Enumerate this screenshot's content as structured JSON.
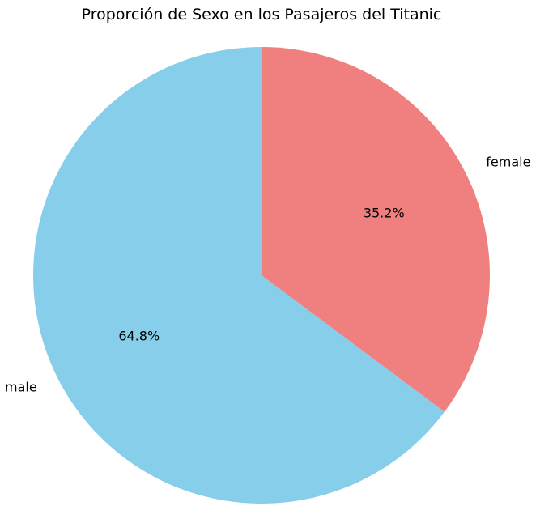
{
  "chart_data": {
    "type": "pie",
    "title": "Proporción de Sexo en los Pasajeros del Titanic",
    "categories": [
      "male",
      "female"
    ],
    "values": [
      64.8,
      35.2
    ],
    "percent_labels": [
      "64.8%",
      "35.2%"
    ],
    "colors": [
      "#87CEEB",
      "#F08080"
    ],
    "start_angle_deg": 90,
    "direction": "counterclockwise",
    "legend": "none"
  }
}
